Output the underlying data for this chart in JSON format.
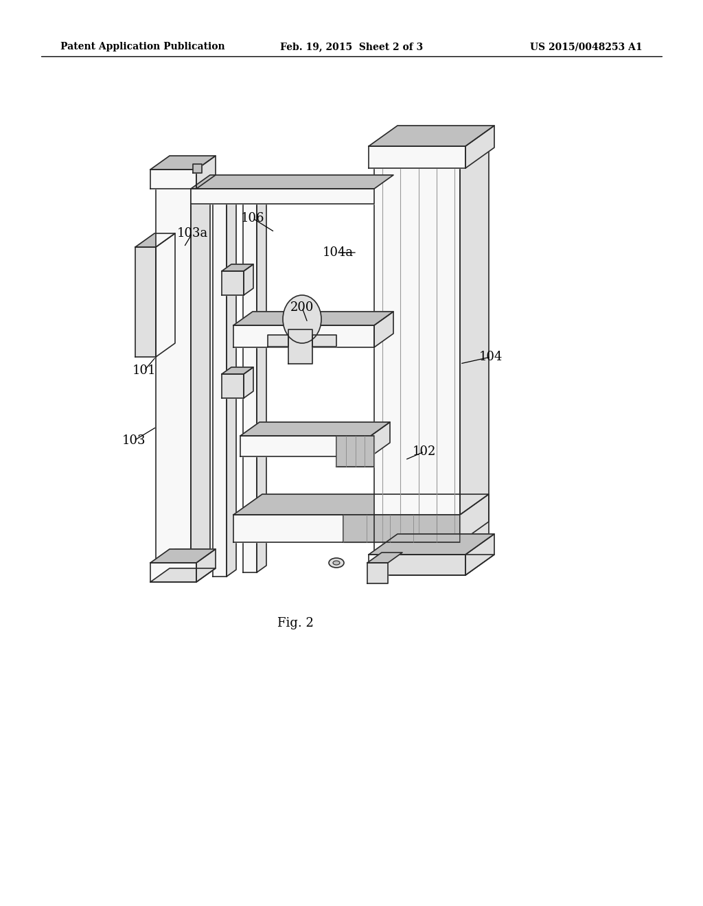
{
  "background_color": "#ffffff",
  "header_left": "Patent Application Publication",
  "header_center": "Feb. 19, 2015  Sheet 2 of 3",
  "header_right": "US 2015/0048253 A1",
  "figure_label": "Fig. 2",
  "line_color": "#2a2a2a",
  "label_fontsize": 13,
  "header_fontsize": 10,
  "fig_label_fontsize": 13,
  "fc_white": "#f8f8f8",
  "fc_light": "#e0e0e0",
  "fc_mid": "#c0c0c0",
  "fc_dark": "#a0a0a0",
  "fc_stripe": "#d8d8d8"
}
